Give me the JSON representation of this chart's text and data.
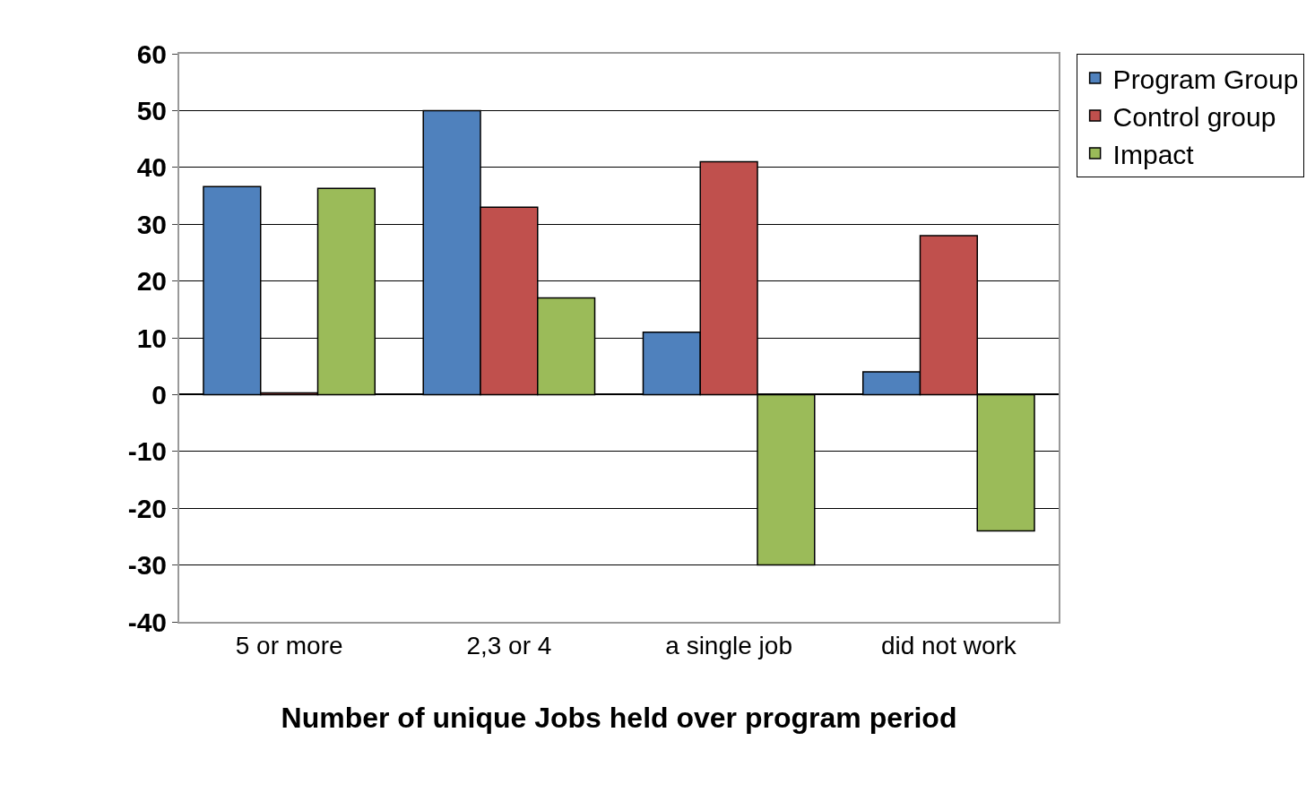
{
  "chart_data": {
    "type": "bar",
    "xlabel": "Number of unique Jobs held over program period",
    "categories": [
      "5 or more",
      "2,3 or 4",
      "a single job",
      "did not work"
    ],
    "series": [
      {
        "name": "Program Group",
        "color": "#4f81bd",
        "values": [
          36.6,
          50,
          11,
          4
        ]
      },
      {
        "name": "Control group",
        "color": "#c0504d",
        "values": [
          0.3,
          33,
          41,
          28
        ]
      },
      {
        "name": "Impact",
        "color": "#9bbb59",
        "values": [
          36.3,
          17,
          -30,
          -24
        ]
      }
    ],
    "ylim": [
      -40,
      60
    ],
    "yticks": [
      -40,
      -30,
      -20,
      -10,
      0,
      10,
      20,
      30,
      40,
      50,
      60
    ],
    "grid": "y",
    "legend": "top right"
  }
}
